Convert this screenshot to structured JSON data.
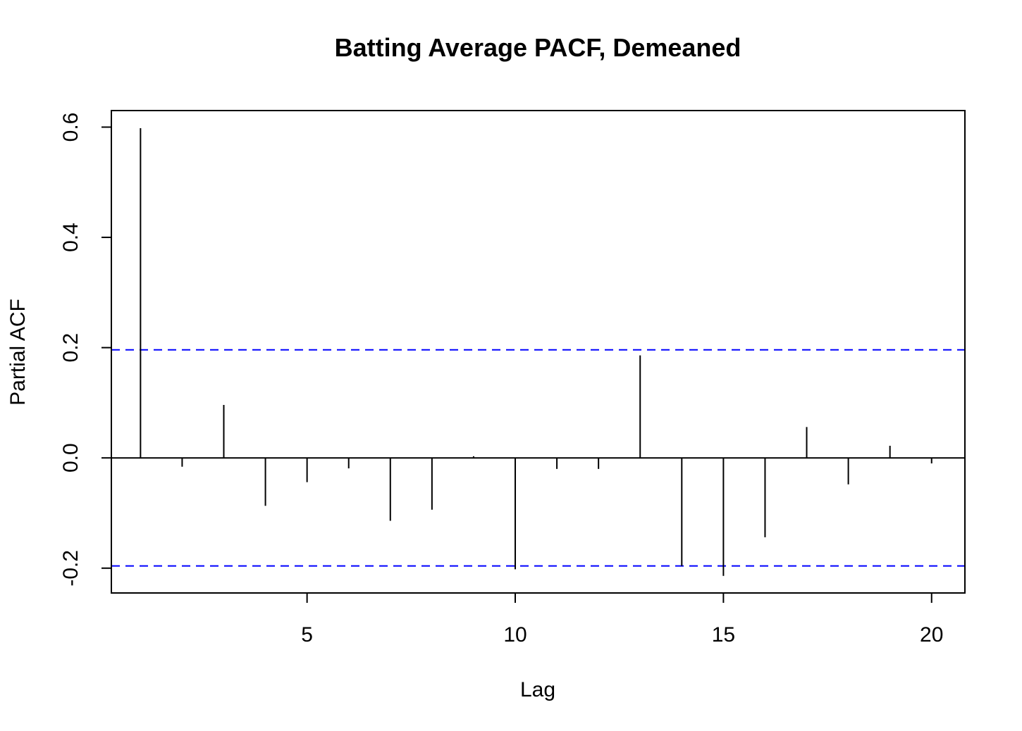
{
  "chart_data": {
    "type": "bar",
    "title": "Batting Average PACF, Demeaned",
    "xlabel": "Lag",
    "ylabel": "Partial ACF",
    "x": [
      1,
      2,
      3,
      4,
      5,
      6,
      7,
      8,
      9,
      10,
      11,
      12,
      13,
      14,
      15,
      16,
      17,
      18,
      19,
      20
    ],
    "values": [
      0.598,
      -0.016,
      0.096,
      -0.087,
      -0.044,
      -0.019,
      -0.114,
      -0.094,
      0.003,
      -0.202,
      -0.02,
      -0.02,
      0.186,
      -0.196,
      -0.214,
      -0.144,
      0.056,
      -0.048,
      0.022,
      -0.01
    ],
    "confidence_bounds": [
      0.196,
      -0.196
    ],
    "xlim": [
      0.3,
      20.8
    ],
    "ylim": [
      -0.245,
      0.63
    ],
    "xticks": [
      5,
      10,
      15,
      20
    ],
    "yticks": [
      -0.2,
      0.0,
      0.2,
      0.4,
      0.6
    ],
    "ytick_labels": [
      "-0.2",
      "0.0",
      "0.2",
      "0.4",
      "0.6"
    ],
    "zero_line": true,
    "grid": false,
    "colors": {
      "bars": "#000000",
      "confidence": "#0000ff",
      "axes": "#000000"
    }
  }
}
